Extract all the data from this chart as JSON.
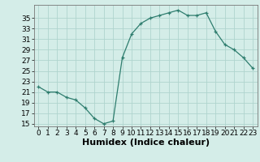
{
  "x": [
    0,
    1,
    2,
    3,
    4,
    5,
    6,
    7,
    8,
    9,
    10,
    11,
    12,
    13,
    14,
    15,
    16,
    17,
    18,
    19,
    20,
    21,
    22,
    23
  ],
  "y": [
    22,
    21,
    21,
    20,
    19.5,
    18,
    16,
    15,
    15.5,
    27.5,
    32,
    34,
    35,
    35.5,
    36,
    36.5,
    35.5,
    35.5,
    36,
    32.5,
    30,
    29,
    27.5,
    25.5
  ],
  "line_color": "#2e7d6e",
  "marker_color": "#2e7d6e",
  "bg_color": "#d4ede8",
  "grid_color": "#b0d4ce",
  "xlabel": "Humidex (Indice chaleur)",
  "ylim": [
    14.5,
    37.5
  ],
  "xlim": [
    -0.5,
    23.5
  ],
  "yticks": [
    15,
    17,
    19,
    21,
    23,
    25,
    27,
    29,
    31,
    33,
    35
  ],
  "xticks": [
    0,
    1,
    2,
    3,
    4,
    5,
    6,
    7,
    8,
    9,
    10,
    11,
    12,
    13,
    14,
    15,
    16,
    17,
    18,
    19,
    20,
    21,
    22,
    23
  ],
  "tick_label_fontsize": 6.5,
  "xlabel_fontsize": 8.0
}
